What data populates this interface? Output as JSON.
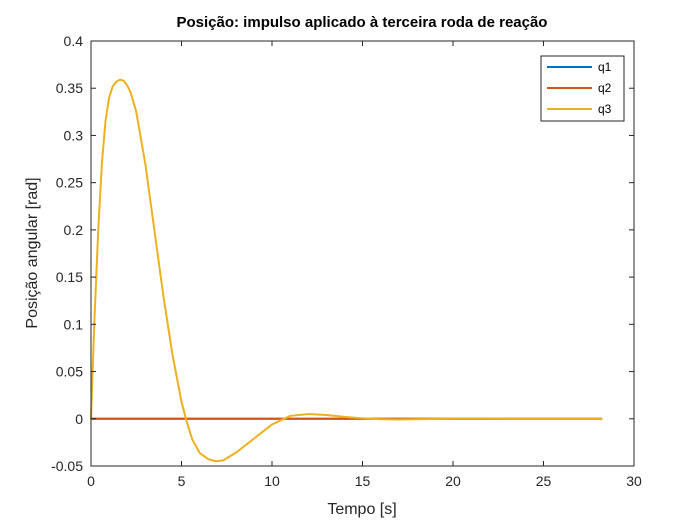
{
  "chart_data": {
    "type": "line",
    "title": "Posição: impulso aplicado à terceira roda de reação",
    "xlabel": "Tempo [s]",
    "ylabel": "Posição angular [rad]",
    "xlim": [
      0,
      30
    ],
    "ylim": [
      -0.05,
      0.4
    ],
    "xticks": [
      0,
      5,
      10,
      15,
      20,
      25,
      30
    ],
    "yticks": [
      -0.05,
      0,
      0.05,
      0.1,
      0.15,
      0.2,
      0.25,
      0.3,
      0.35,
      0.4
    ],
    "xtick_labels": [
      "0",
      "5",
      "10",
      "15",
      "20",
      "25",
      "30"
    ],
    "ytick_labels": [
      "-0.05",
      "0",
      "0.05",
      "0.1",
      "0.15",
      "0.2",
      "0.25",
      "0.3",
      "0.35",
      "0.4"
    ],
    "grid": false,
    "legend_position": "top-right",
    "series": [
      {
        "name": "q1",
        "color": "#0072BD",
        "x": [
          0,
          28.2
        ],
        "y": [
          0,
          0
        ]
      },
      {
        "name": "q2",
        "color": "#D95319",
        "x": [
          0,
          28.2
        ],
        "y": [
          0,
          0
        ]
      },
      {
        "name": "q3",
        "color": "#EDB120",
        "x": [
          0,
          0.2,
          0.4,
          0.6,
          0.8,
          1.0,
          1.2,
          1.4,
          1.6,
          1.8,
          2.0,
          2.2,
          2.5,
          3.0,
          3.5,
          4.0,
          4.5,
          5.0,
          5.3,
          5.6,
          6.0,
          6.5,
          6.9,
          7.3,
          8.0,
          9.0,
          10.0,
          11.0,
          12.0,
          13.0,
          14.0,
          15.0,
          16.0,
          17.0,
          18.0,
          20.0,
          22.0,
          25.0,
          28.2
        ],
        "y": [
          0,
          0.11,
          0.2,
          0.27,
          0.315,
          0.34,
          0.352,
          0.357,
          0.359,
          0.358,
          0.353,
          0.345,
          0.325,
          0.27,
          0.2,
          0.13,
          0.068,
          0.018,
          -0.004,
          -0.022,
          -0.036,
          -0.043,
          -0.045,
          -0.044,
          -0.036,
          -0.021,
          -0.006,
          0.003,
          0.005,
          0.004,
          0.002,
          0.0005,
          -0.0005,
          -0.0008,
          -0.0005,
          0.0002,
          0.0001,
          0,
          0
        ]
      }
    ]
  }
}
